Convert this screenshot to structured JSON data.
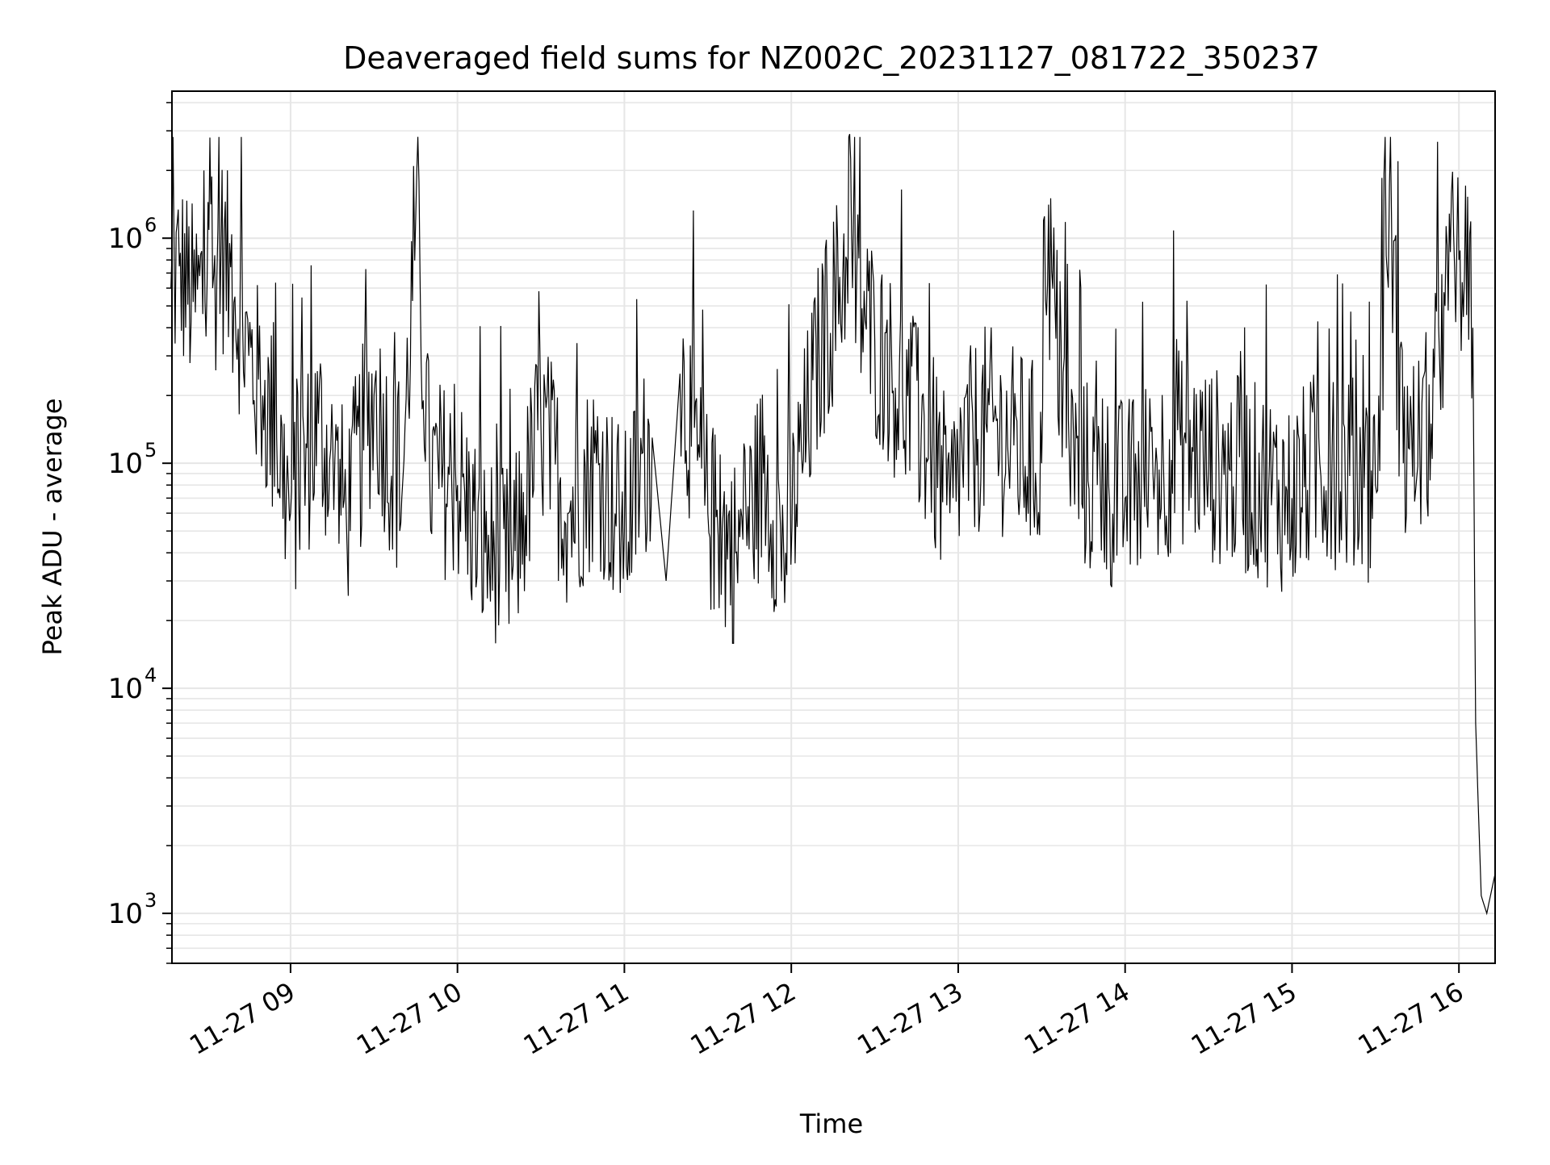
{
  "chart_data": {
    "type": "line",
    "title": "Deaveraged field sums for NZ002C_20231127_081722_350237",
    "xlabel": "Time",
    "ylabel": "Peak ADU - average",
    "yscale": "log",
    "ylim": [
      600,
      4500000
    ],
    "xlim": [
      "2023-11-27T08:17:22",
      "2023-11-27T16:13:00"
    ],
    "x_ticks": [
      {
        "value": "2023-11-27T09:00",
        "label": "11-27 09"
      },
      {
        "value": "2023-11-27T10:00",
        "label": "11-27 10"
      },
      {
        "value": "2023-11-27T11:00",
        "label": "11-27 11"
      },
      {
        "value": "2023-11-27T12:00",
        "label": "11-27 12"
      },
      {
        "value": "2023-11-27T13:00",
        "label": "11-27 13"
      },
      {
        "value": "2023-11-27T14:00",
        "label": "11-27 14"
      },
      {
        "value": "2023-11-27T15:00",
        "label": "11-27 15"
      },
      {
        "value": "2023-11-27T16:00",
        "label": "11-27 16"
      }
    ],
    "y_ticks": [
      {
        "value": 1000,
        "base": "10",
        "exp": "3"
      },
      {
        "value": 10000,
        "base": "10",
        "exp": "4"
      },
      {
        "value": 100000,
        "base": "10",
        "exp": "5"
      },
      {
        "value": 1000000,
        "base": "10",
        "exp": "6"
      }
    ],
    "grid": true,
    "line_color": "#000000",
    "grid_color": "#e6e6e6",
    "series": [
      {
        "x": [
          "2023-11-27T08:17",
          "2023-11-27T08:20",
          "2023-11-27T08:25",
          "2023-11-27T08:30",
          "2023-11-27T08:31",
          "2023-11-27T08:32",
          "2023-11-27T08:35",
          "2023-11-27T08:40",
          "2023-11-27T08:45",
          "2023-11-27T08:50",
          "2023-11-27T08:55",
          "2023-11-27T09:00",
          "2023-11-27T09:10",
          "2023-11-27T09:20",
          "2023-11-27T09:30",
          "2023-11-27T09:40",
          "2023-11-27T09:45",
          "2023-11-27T09:50",
          "2023-11-27T10:00",
          "2023-11-27T10:10",
          "2023-11-27T10:20",
          "2023-11-27T10:30",
          "2023-11-27T10:40",
          "2023-11-27T10:50",
          "2023-11-27T11:00",
          "2023-11-27T11:10",
          "2023-11-27T11:15",
          "2023-11-27T11:20",
          "2023-11-27T11:30",
          "2023-11-27T11:40",
          "2023-11-27T11:50",
          "2023-11-27T11:58",
          "2023-11-27T12:10",
          "2023-11-27T12:20",
          "2023-11-27T12:21",
          "2023-11-27T12:22",
          "2023-11-27T12:30",
          "2023-11-27T12:40",
          "2023-11-27T12:50",
          "2023-11-27T12:57",
          "2023-11-27T13:00",
          "2023-11-27T13:10",
          "2023-11-27T13:20",
          "2023-11-27T13:30",
          "2023-11-27T13:31",
          "2023-11-27T13:40",
          "2023-11-27T13:50",
          "2023-11-27T14:00",
          "2023-11-27T14:10",
          "2023-11-27T14:20",
          "2023-11-27T14:30",
          "2023-11-27T14:40",
          "2023-11-27T14:50",
          "2023-11-27T15:00",
          "2023-11-27T15:10",
          "2023-11-27T15:20",
          "2023-11-27T15:30",
          "2023-11-27T15:35",
          "2023-11-27T15:40",
          "2023-11-27T15:50",
          "2023-11-27T15:55",
          "2023-11-27T16:00",
          "2023-11-27T16:02",
          "2023-11-27T16:05",
          "2023-11-27T16:06",
          "2023-11-27T16:08",
          "2023-11-27T16:10",
          "2023-11-27T16:13"
        ],
        "y": [
          600000,
          750000,
          520000,
          620000,
          2800000,
          600000,
          900000,
          550000,
          300000,
          200000,
          130000,
          60000,
          150000,
          60000,
          200000,
          70000,
          1250000,
          90000,
          80000,
          40000,
          35000,
          150000,
          60000,
          100000,
          50000,
          130000,
          30000,
          250000,
          60000,
          40000,
          90000,
          40000,
          300000,
          800000,
          2900000,
          600000,
          350000,
          200000,
          120000,
          60000,
          100000,
          150000,
          120000,
          100000,
          1250000,
          100000,
          80000,
          70000,
          90000,
          120000,
          100000,
          90000,
          80000,
          70000,
          100000,
          90000,
          80000,
          1700000,
          100000,
          150000,
          500000,
          800000,
          700000,
          400000,
          7000,
          1200,
          1000,
          1500
        ]
      }
    ]
  }
}
